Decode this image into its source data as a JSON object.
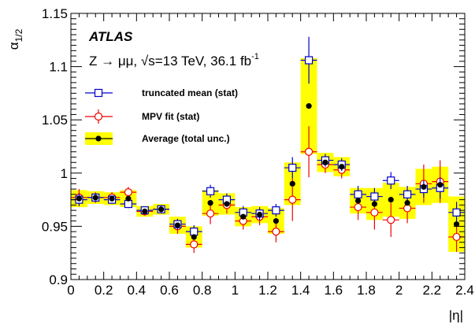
{
  "chart_data": {
    "type": "scatter",
    "ylabel": "α",
    "ylabel_sub": "1/2",
    "xlabel": "|η|",
    "xlim": [
      0,
      2.4
    ],
    "ylim": [
      0.9,
      1.15
    ],
    "x_ticks": [
      "0",
      "0.2",
      "0.4",
      "0.6",
      "0.8",
      "1",
      "1.2",
      "1.4",
      "1.6",
      "1.8",
      "2",
      "2.2",
      "2.4"
    ],
    "x_tick_values": [
      0,
      0.2,
      0.4,
      0.6,
      0.8,
      1.0,
      1.2,
      1.4,
      1.6,
      1.8,
      2.0,
      2.2,
      2.4
    ],
    "y_ticks": [
      "0.9",
      "0.95",
      "1",
      "1.05",
      "1.1",
      "1.15"
    ],
    "y_tick_values": [
      0.9,
      0.95,
      1.0,
      1.05,
      1.1,
      1.15
    ],
    "annotations": {
      "experiment": "ATLAS",
      "info": "Z → μμ, √s=13 TeV, 36.1 fb",
      "info_sup": "-1"
    },
    "legend_position": "top-left",
    "bin_edges": [
      0,
      0.1,
      0.2,
      0.3,
      0.4,
      0.5,
      0.6,
      0.7,
      0.8,
      0.9,
      1.0,
      1.1,
      1.2,
      1.3,
      1.4,
      1.5,
      1.6,
      1.7,
      1.8,
      1.9,
      2.0,
      2.1,
      2.2,
      2.3,
      2.4
    ],
    "series": [
      {
        "name": "truncated mean (stat)",
        "color": "#0000cc",
        "marker": "open-square",
        "values": [
          0.975,
          0.977,
          0.975,
          0.971,
          0.965,
          0.966,
          0.952,
          0.945,
          0.983,
          0.975,
          0.963,
          0.962,
          0.965,
          1.005,
          1.106,
          1.012,
          1.008,
          0.98,
          0.978,
          0.993,
          0.98,
          0.985,
          0.986,
          0.963
        ],
        "errors": [
          0.006,
          0.004,
          0.004,
          0.004,
          0.003,
          0.003,
          0.005,
          0.006,
          0.006,
          0.006,
          0.006,
          0.006,
          0.006,
          0.01,
          0.022,
          0.006,
          0.006,
          0.008,
          0.008,
          0.008,
          0.008,
          0.008,
          0.01,
          0.01
        ]
      },
      {
        "name": "MPV fit (stat)",
        "color": "#ee0000",
        "marker": "open-circle",
        "values": [
          0.977,
          0.977,
          0.977,
          0.982,
          0.964,
          0.966,
          0.95,
          0.933,
          0.962,
          0.97,
          0.955,
          0.959,
          0.945,
          0.975,
          1.02,
          1.008,
          1.003,
          0.968,
          0.963,
          0.956,
          0.967,
          0.99,
          0.992,
          0.94
        ],
        "errors": [
          0.008,
          0.005,
          0.005,
          0.005,
          0.004,
          0.004,
          0.007,
          0.008,
          0.01,
          0.008,
          0.008,
          0.008,
          0.01,
          0.02,
          0.024,
          0.008,
          0.008,
          0.012,
          0.016,
          0.016,
          0.014,
          0.018,
          0.02,
          0.014
        ]
      },
      {
        "name": "Average (total unc.)",
        "color": "#000000",
        "marker": "filled-circle",
        "band_color": "#ffff00",
        "values": [
          0.976,
          0.977,
          0.976,
          0.976,
          0.964,
          0.966,
          0.951,
          0.94,
          0.972,
          0.971,
          0.959,
          0.961,
          0.955,
          0.99,
          1.063,
          1.01,
          1.006,
          0.974,
          0.971,
          0.975,
          0.972,
          0.987,
          0.989,
          0.952
        ],
        "errors": [
          0.008,
          0.006,
          0.006,
          0.008,
          0.005,
          0.005,
          0.008,
          0.01,
          0.012,
          0.01,
          0.009,
          0.008,
          0.012,
          0.02,
          0.045,
          0.009,
          0.009,
          0.012,
          0.015,
          0.016,
          0.015,
          0.017,
          0.017,
          0.026
        ]
      }
    ]
  }
}
